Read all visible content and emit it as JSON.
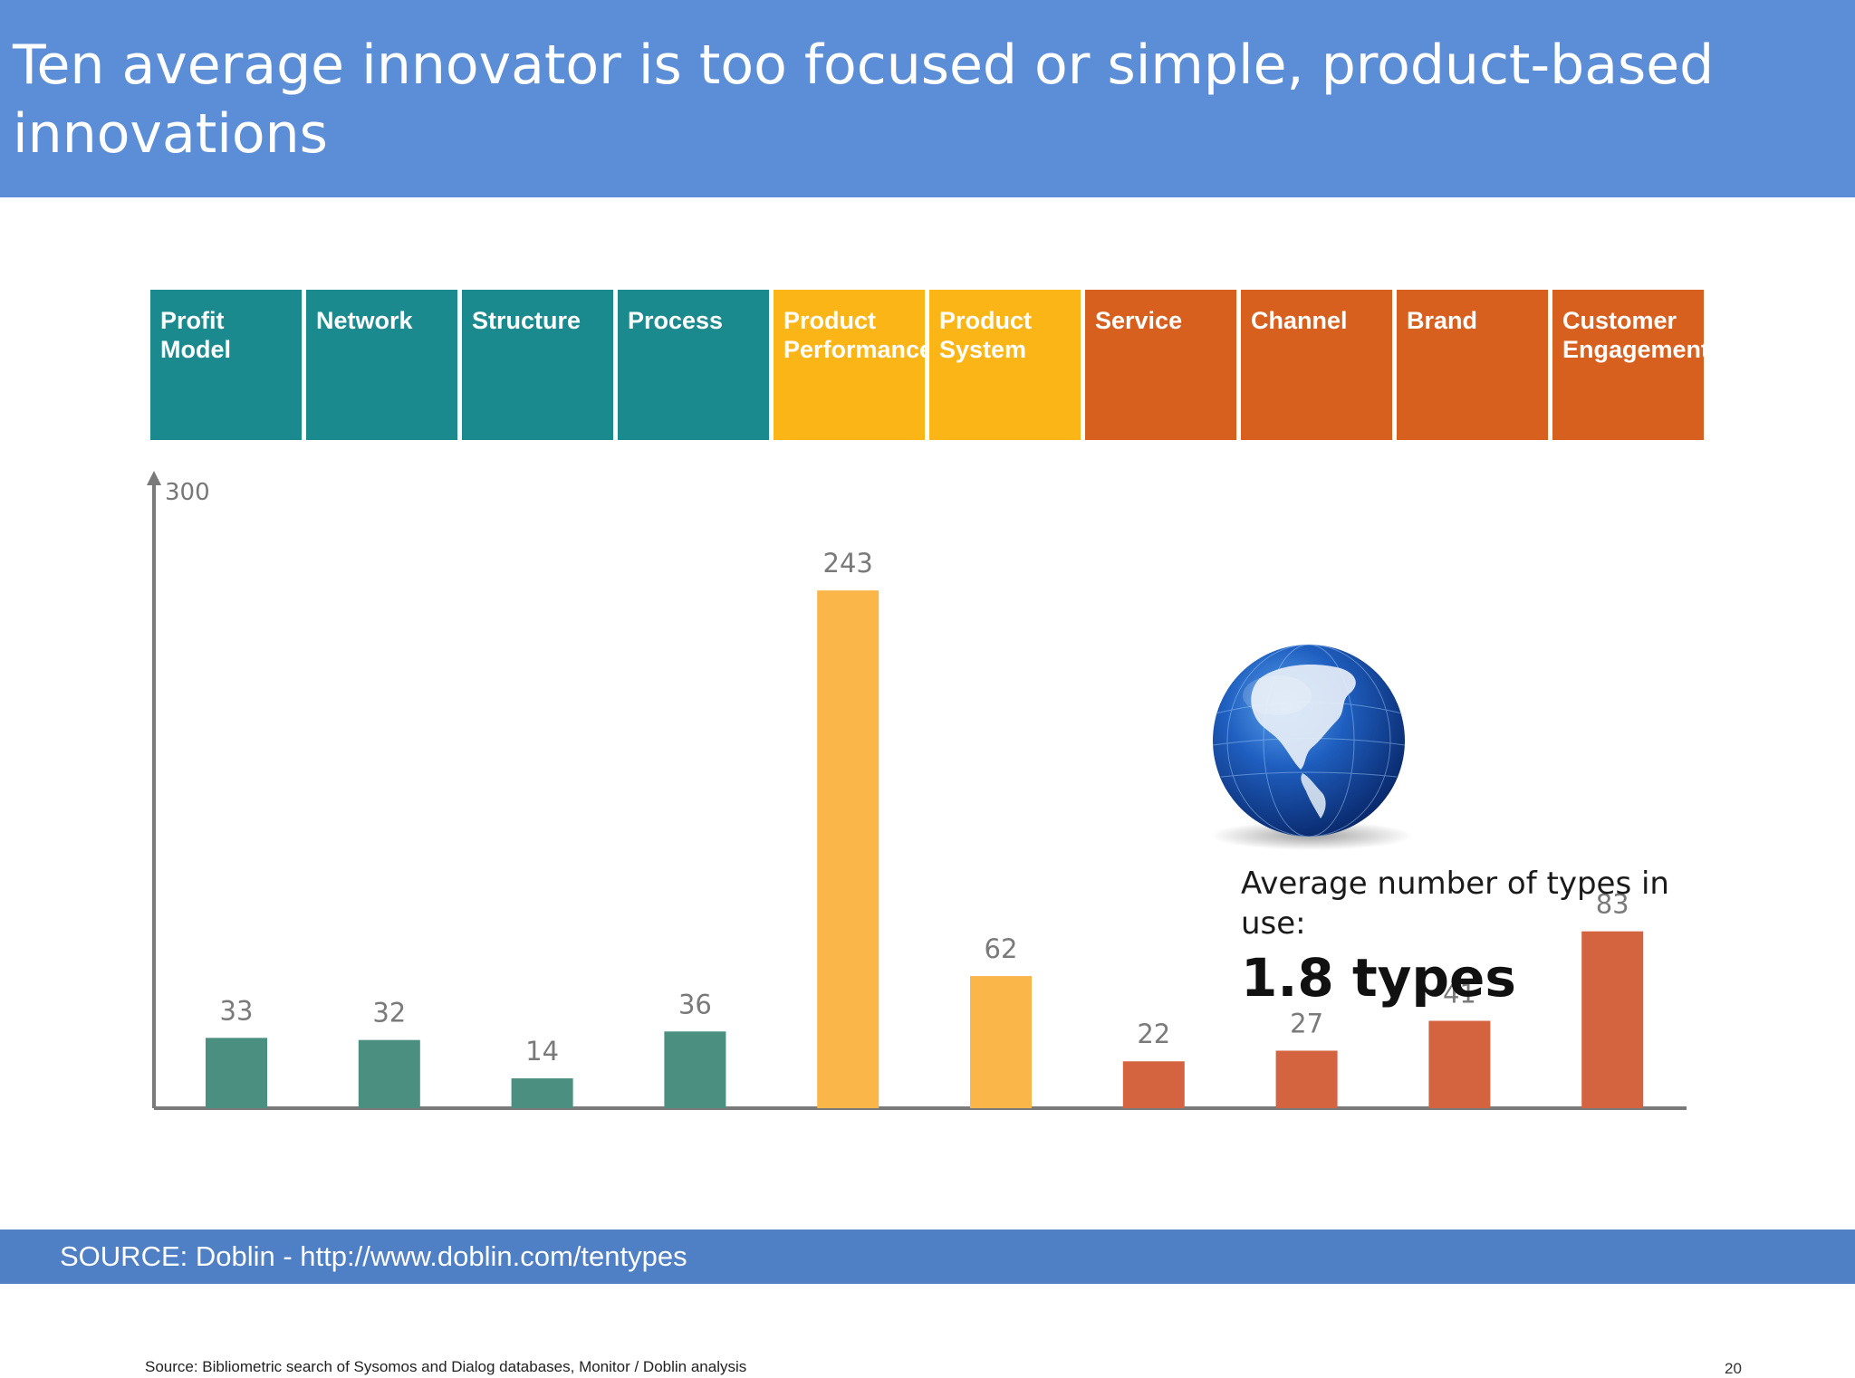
{
  "slide": {
    "title": "Ten average innovator is too focused or simple, product-based innovations",
    "footer": "SOURCE: Doblin - http://www.doblin.com/tentypes",
    "source_note": "Source: Bibliometric search of Sysomos and Dialog databases, Monitor / Doblin analysis",
    "page_number": "20"
  },
  "callout": {
    "caption": "Average number of types in use:",
    "value": "1.8 types",
    "icon": "globe-icon"
  },
  "colors": {
    "header_teal": "#1b8a8e",
    "header_yellow": "#fbb516",
    "header_orange": "#d7601f",
    "bar_teal": "#4a8f7f",
    "bar_yellow": "#fbb64a",
    "bar_orange": "#d4643f",
    "title_bar": "#5b8ed6",
    "footer_bar": "#4f7fc4"
  },
  "chart_data": {
    "type": "bar",
    "categories": [
      "Profit Model",
      "Network",
      "Structure",
      "Process",
      "Product Performance",
      "Product System",
      "Service",
      "Channel",
      "Brand",
      "Customer Engagement"
    ],
    "category_lines": [
      [
        "Profit",
        "Model"
      ],
      [
        "Network"
      ],
      [
        "Structure"
      ],
      [
        "Process"
      ],
      [
        "Product",
        "Performance"
      ],
      [
        "Product",
        "System"
      ],
      [
        "Service"
      ],
      [
        "Channel"
      ],
      [
        "Brand"
      ],
      [
        "Customer",
        "Engagement"
      ]
    ],
    "category_groups": [
      "teal",
      "teal",
      "teal",
      "teal",
      "yellow",
      "yellow",
      "orange",
      "orange",
      "orange",
      "orange"
    ],
    "values": [
      33,
      32,
      14,
      36,
      243,
      62,
      22,
      27,
      41,
      83
    ],
    "yticks": [
      "300"
    ],
    "ylim": [
      0,
      300
    ],
    "grid": false,
    "legend": "none"
  }
}
